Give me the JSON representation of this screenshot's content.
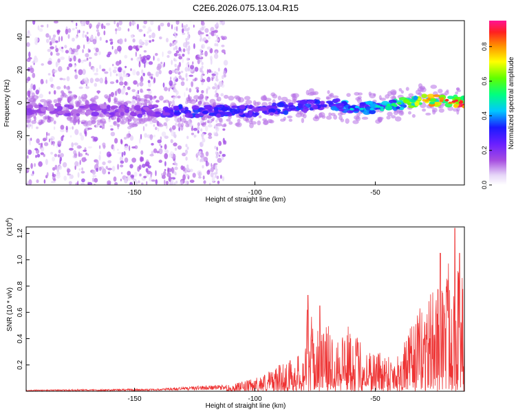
{
  "title": "C2E6.2026.075.13.04.R15",
  "chart_data": [
    {
      "type": "heatmap",
      "name": "spectrogram",
      "xlabel": "Height of straight line (km)",
      "ylabel": "Frequency (Hz)",
      "xlim": [
        -195,
        -13
      ],
      "ylim": [
        -50,
        50
      ],
      "xticks": [
        -150,
        -100,
        -50
      ],
      "yticks": [
        -40,
        -20,
        0,
        20,
        40
      ],
      "colorbar": {
        "label": "Normalized spectral amplitude",
        "range": [
          0,
          0.95
        ],
        "ticks": [
          0.0,
          0.2,
          0.4,
          0.6,
          0.8
        ],
        "colors": [
          "#e6d6f8",
          "#8a2be2",
          "#1a1aff",
          "#00e5ff",
          "#00ff40",
          "#ffff00",
          "#ff8c00",
          "#ff0000",
          "#ff1493"
        ]
      },
      "ridge": {
        "description_points": [
          [
            -195,
            -4
          ],
          [
            -150,
            -5
          ],
          [
            -140,
            -5
          ],
          [
            -120,
            -5
          ],
          [
            -100,
            -5
          ],
          [
            -80,
            -2
          ],
          [
            -70,
            0
          ],
          [
            -60,
            -3
          ],
          [
            -50,
            -3
          ],
          [
            -40,
            -1
          ],
          [
            -30,
            2
          ],
          [
            -20,
            1
          ],
          [
            -13,
            0
          ]
        ],
        "amplitude_points": [
          [
            -195,
            0.18
          ],
          [
            -150,
            0.2
          ],
          [
            -130,
            0.35
          ],
          [
            -110,
            0.35
          ],
          [
            -100,
            0.3
          ],
          [
            -85,
            0.35
          ],
          [
            -70,
            0.35
          ],
          [
            -60,
            0.45
          ],
          [
            -50,
            0.45
          ],
          [
            -40,
            0.55
          ],
          [
            -30,
            0.75
          ],
          [
            -20,
            0.85
          ],
          [
            -13,
            0.9
          ]
        ]
      },
      "noise_region": {
        "x_range": [
          -195,
          -112
        ],
        "y_range": [
          -50,
          50
        ]
      }
    },
    {
      "type": "line",
      "name": "snr",
      "xlabel": "Height of straight line (km)",
      "ylabel": "SNR (10 * v/v)",
      "y_multiplier": "(x10",
      "y_multiplier_exp": "4",
      "y_multiplier_close": ")",
      "xlim": [
        -195,
        -13
      ],
      "ylim": [
        0,
        1.25
      ],
      "xticks": [
        -150,
        -100,
        -50
      ],
      "yticks": [
        0.2,
        0.4,
        0.6,
        0.8,
        1.0,
        1.2
      ],
      "color": "#ee3333",
      "envelope": [
        [
          -195,
          0.01
        ],
        [
          -140,
          0.02
        ],
        [
          -125,
          0.04
        ],
        [
          -110,
          0.05
        ],
        [
          -100,
          0.1
        ],
        [
          -90,
          0.2
        ],
        [
          -80,
          0.3
        ],
        [
          -78,
          0.7
        ],
        [
          -75,
          0.45
        ],
        [
          -70,
          0.5
        ],
        [
          -60,
          0.5
        ],
        [
          -55,
          0.35
        ],
        [
          -45,
          0.3
        ],
        [
          -40,
          0.3
        ],
        [
          -35,
          0.5
        ],
        [
          -30,
          0.7
        ],
        [
          -25,
          0.8
        ],
        [
          -20,
          1.0
        ],
        [
          -17,
          1.22
        ],
        [
          -15,
          1.0
        ],
        [
          -13,
          0.8
        ]
      ],
      "peaks": [
        {
          "x": -78,
          "y": 0.73
        },
        {
          "x": -73,
          "y": 0.65
        },
        {
          "x": -23,
          "y": 1.05
        },
        {
          "x": -17,
          "y": 1.24
        },
        {
          "x": -15,
          "y": 1.05
        }
      ]
    }
  ]
}
